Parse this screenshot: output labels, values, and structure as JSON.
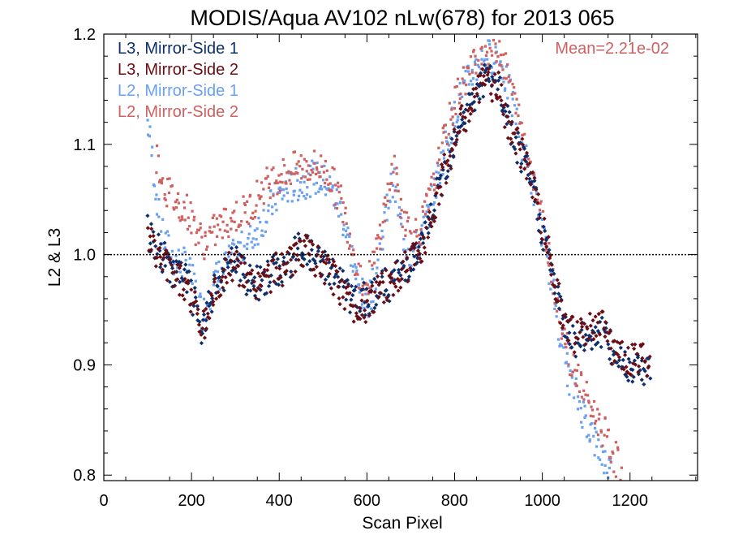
{
  "chart_data": {
    "type": "scatter",
    "title": "MODIS/Aqua AV102 nLw(678) for 2013 065",
    "xlabel": "Scan Pixel",
    "ylabel": "L2 & L3",
    "xlim": [
      0,
      1354
    ],
    "ylim": [
      0.795,
      1.2
    ],
    "xticks": [
      0,
      200,
      400,
      600,
      800,
      1000,
      1200
    ],
    "xtick_labels": [
      "0",
      "200",
      "400",
      "600",
      "800",
      "1000",
      "1200"
    ],
    "yticks": [
      0.8,
      0.9,
      1.0,
      1.1,
      1.2
    ],
    "ytick_labels": [
      "0.8",
      "0.9",
      "1.0",
      "1.1",
      "1.2"
    ],
    "reference_line": 1.0,
    "annotation": "Mean=2.21e-02",
    "annotation_color": "#d06060",
    "grid": false,
    "legend_position": "top-left",
    "series": [
      {
        "name": "L3, Mirror-Side 1",
        "color": "#0d2f6b",
        "marker": "diamond",
        "points": [
          [
            100,
            1.02
          ],
          [
            130,
            1.0
          ],
          [
            160,
            0.985
          ],
          [
            190,
            0.975
          ],
          [
            215,
            0.945
          ],
          [
            225,
            0.925
          ],
          [
            250,
            0.97
          ],
          [
            280,
            0.985
          ],
          [
            300,
            0.995
          ],
          [
            330,
            0.975
          ],
          [
            360,
            0.975
          ],
          [
            390,
            0.985
          ],
          [
            420,
            0.99
          ],
          [
            450,
            1.01
          ],
          [
            480,
            0.995
          ],
          [
            510,
            0.99
          ],
          [
            540,
            0.975
          ],
          [
            570,
            0.955
          ],
          [
            600,
            0.96
          ],
          [
            630,
            0.97
          ],
          [
            660,
            0.975
          ],
          [
            690,
            0.99
          ],
          [
            720,
            1.0
          ],
          [
            750,
            1.04
          ],
          [
            780,
            1.08
          ],
          [
            810,
            1.12
          ],
          [
            840,
            1.14
          ],
          [
            870,
            1.16
          ],
          [
            900,
            1.15
          ],
          [
            930,
            1.11
          ],
          [
            960,
            1.08
          ],
          [
            980,
            1.06
          ],
          [
            1000,
            1.02
          ],
          [
            1020,
            0.99
          ],
          [
            1040,
            0.95
          ],
          [
            1060,
            0.93
          ],
          [
            1080,
            0.92
          ],
          [
            1100,
            0.925
          ],
          [
            1120,
            0.93
          ],
          [
            1140,
            0.93
          ],
          [
            1160,
            0.91
          ],
          [
            1180,
            0.905
          ],
          [
            1200,
            0.9
          ],
          [
            1220,
            0.9
          ],
          [
            1245,
            0.895
          ]
        ]
      },
      {
        "name": "L3, Mirror-Side 2",
        "color": "#6b0d14",
        "marker": "diamond",
        "points": [
          [
            100,
            1.015
          ],
          [
            130,
            0.995
          ],
          [
            160,
            0.985
          ],
          [
            190,
            0.97
          ],
          [
            215,
            0.945
          ],
          [
            225,
            0.93
          ],
          [
            250,
            0.965
          ],
          [
            280,
            0.985
          ],
          [
            300,
            0.99
          ],
          [
            330,
            0.975
          ],
          [
            360,
            0.975
          ],
          [
            390,
            0.985
          ],
          [
            420,
            0.99
          ],
          [
            450,
            1.005
          ],
          [
            480,
            0.995
          ],
          [
            510,
            0.985
          ],
          [
            540,
            0.97
          ],
          [
            570,
            0.95
          ],
          [
            600,
            0.955
          ],
          [
            630,
            0.97
          ],
          [
            660,
            0.975
          ],
          [
            690,
            0.99
          ],
          [
            720,
            1.0
          ],
          [
            750,
            1.04
          ],
          [
            780,
            1.08
          ],
          [
            810,
            1.115
          ],
          [
            840,
            1.135
          ],
          [
            870,
            1.16
          ],
          [
            900,
            1.15
          ],
          [
            930,
            1.11
          ],
          [
            960,
            1.085
          ],
          [
            980,
            1.065
          ],
          [
            1000,
            1.025
          ],
          [
            1020,
            0.995
          ],
          [
            1040,
            0.955
          ],
          [
            1060,
            0.93
          ],
          [
            1080,
            0.925
          ],
          [
            1100,
            0.93
          ],
          [
            1120,
            0.935
          ],
          [
            1140,
            0.935
          ],
          [
            1160,
            0.915
          ],
          [
            1180,
            0.91
          ],
          [
            1200,
            0.905
          ],
          [
            1220,
            0.905
          ],
          [
            1245,
            0.9
          ]
        ]
      },
      {
        "name": "L2, Mirror-Side 1",
        "color": "#6aa0f0",
        "marker": "square",
        "points": [
          [
            100,
            1.12
          ],
          [
            110,
            1.09
          ],
          [
            130,
            1.02
          ],
          [
            160,
            0.995
          ],
          [
            190,
            0.99
          ],
          [
            215,
            0.96
          ],
          [
            225,
            0.945
          ],
          [
            250,
            0.975
          ],
          [
            280,
            0.99
          ],
          [
            300,
            1.0
          ],
          [
            330,
            1.01
          ],
          [
            360,
            1.03
          ],
          [
            390,
            1.05
          ],
          [
            420,
            1.06
          ],
          [
            450,
            1.065
          ],
          [
            480,
            1.07
          ],
          [
            510,
            1.065
          ],
          [
            540,
            1.04
          ],
          [
            560,
            1.01
          ],
          [
            580,
            0.97
          ],
          [
            600,
            0.955
          ],
          [
            620,
            0.98
          ],
          [
            640,
            1.03
          ],
          [
            660,
            1.07
          ],
          [
            680,
            1.02
          ],
          [
            700,
            1.0
          ],
          [
            720,
            1.01
          ],
          [
            750,
            1.05
          ],
          [
            780,
            1.1
          ],
          [
            810,
            1.14
          ],
          [
            840,
            1.165
          ],
          [
            870,
            1.18
          ],
          [
            900,
            1.18
          ],
          [
            930,
            1.14
          ],
          [
            960,
            1.09
          ],
          [
            980,
            1.06
          ],
          [
            1000,
            1.02
          ],
          [
            1020,
            0.98
          ],
          [
            1040,
            0.93
          ],
          [
            1060,
            0.89
          ],
          [
            1080,
            0.87
          ],
          [
            1100,
            0.85
          ],
          [
            1120,
            0.83
          ],
          [
            1140,
            0.815
          ],
          [
            1160,
            0.8
          ]
        ]
      },
      {
        "name": "L2, Mirror-Side 2",
        "color": "#d06060",
        "marker": "square",
        "points": [
          [
            120,
            1.09
          ],
          [
            140,
            1.06
          ],
          [
            160,
            1.05
          ],
          [
            190,
            1.04
          ],
          [
            215,
            1.02
          ],
          [
            225,
            1.01
          ],
          [
            250,
            1.02
          ],
          [
            280,
            1.03
          ],
          [
            300,
            1.035
          ],
          [
            330,
            1.04
          ],
          [
            360,
            1.06
          ],
          [
            390,
            1.07
          ],
          [
            420,
            1.075
          ],
          [
            450,
            1.08
          ],
          [
            480,
            1.08
          ],
          [
            510,
            1.075
          ],
          [
            540,
            1.05
          ],
          [
            560,
            1.02
          ],
          [
            580,
            0.985
          ],
          [
            600,
            0.97
          ],
          [
            620,
            1.0
          ],
          [
            640,
            1.04
          ],
          [
            660,
            1.08
          ],
          [
            680,
            1.04
          ],
          [
            700,
            1.02
          ],
          [
            720,
            1.02
          ],
          [
            750,
            1.06
          ],
          [
            780,
            1.11
          ],
          [
            810,
            1.15
          ],
          [
            840,
            1.17
          ],
          [
            870,
            1.185
          ],
          [
            900,
            1.19
          ],
          [
            930,
            1.15
          ],
          [
            960,
            1.1
          ],
          [
            980,
            1.07
          ],
          [
            1000,
            1.03
          ],
          [
            1020,
            0.99
          ],
          [
            1040,
            0.945
          ],
          [
            1060,
            0.91
          ],
          [
            1080,
            0.89
          ],
          [
            1100,
            0.87
          ],
          [
            1120,
            0.855
          ],
          [
            1140,
            0.84
          ],
          [
            1160,
            0.82
          ],
          [
            1180,
            0.805
          ]
        ]
      }
    ]
  }
}
